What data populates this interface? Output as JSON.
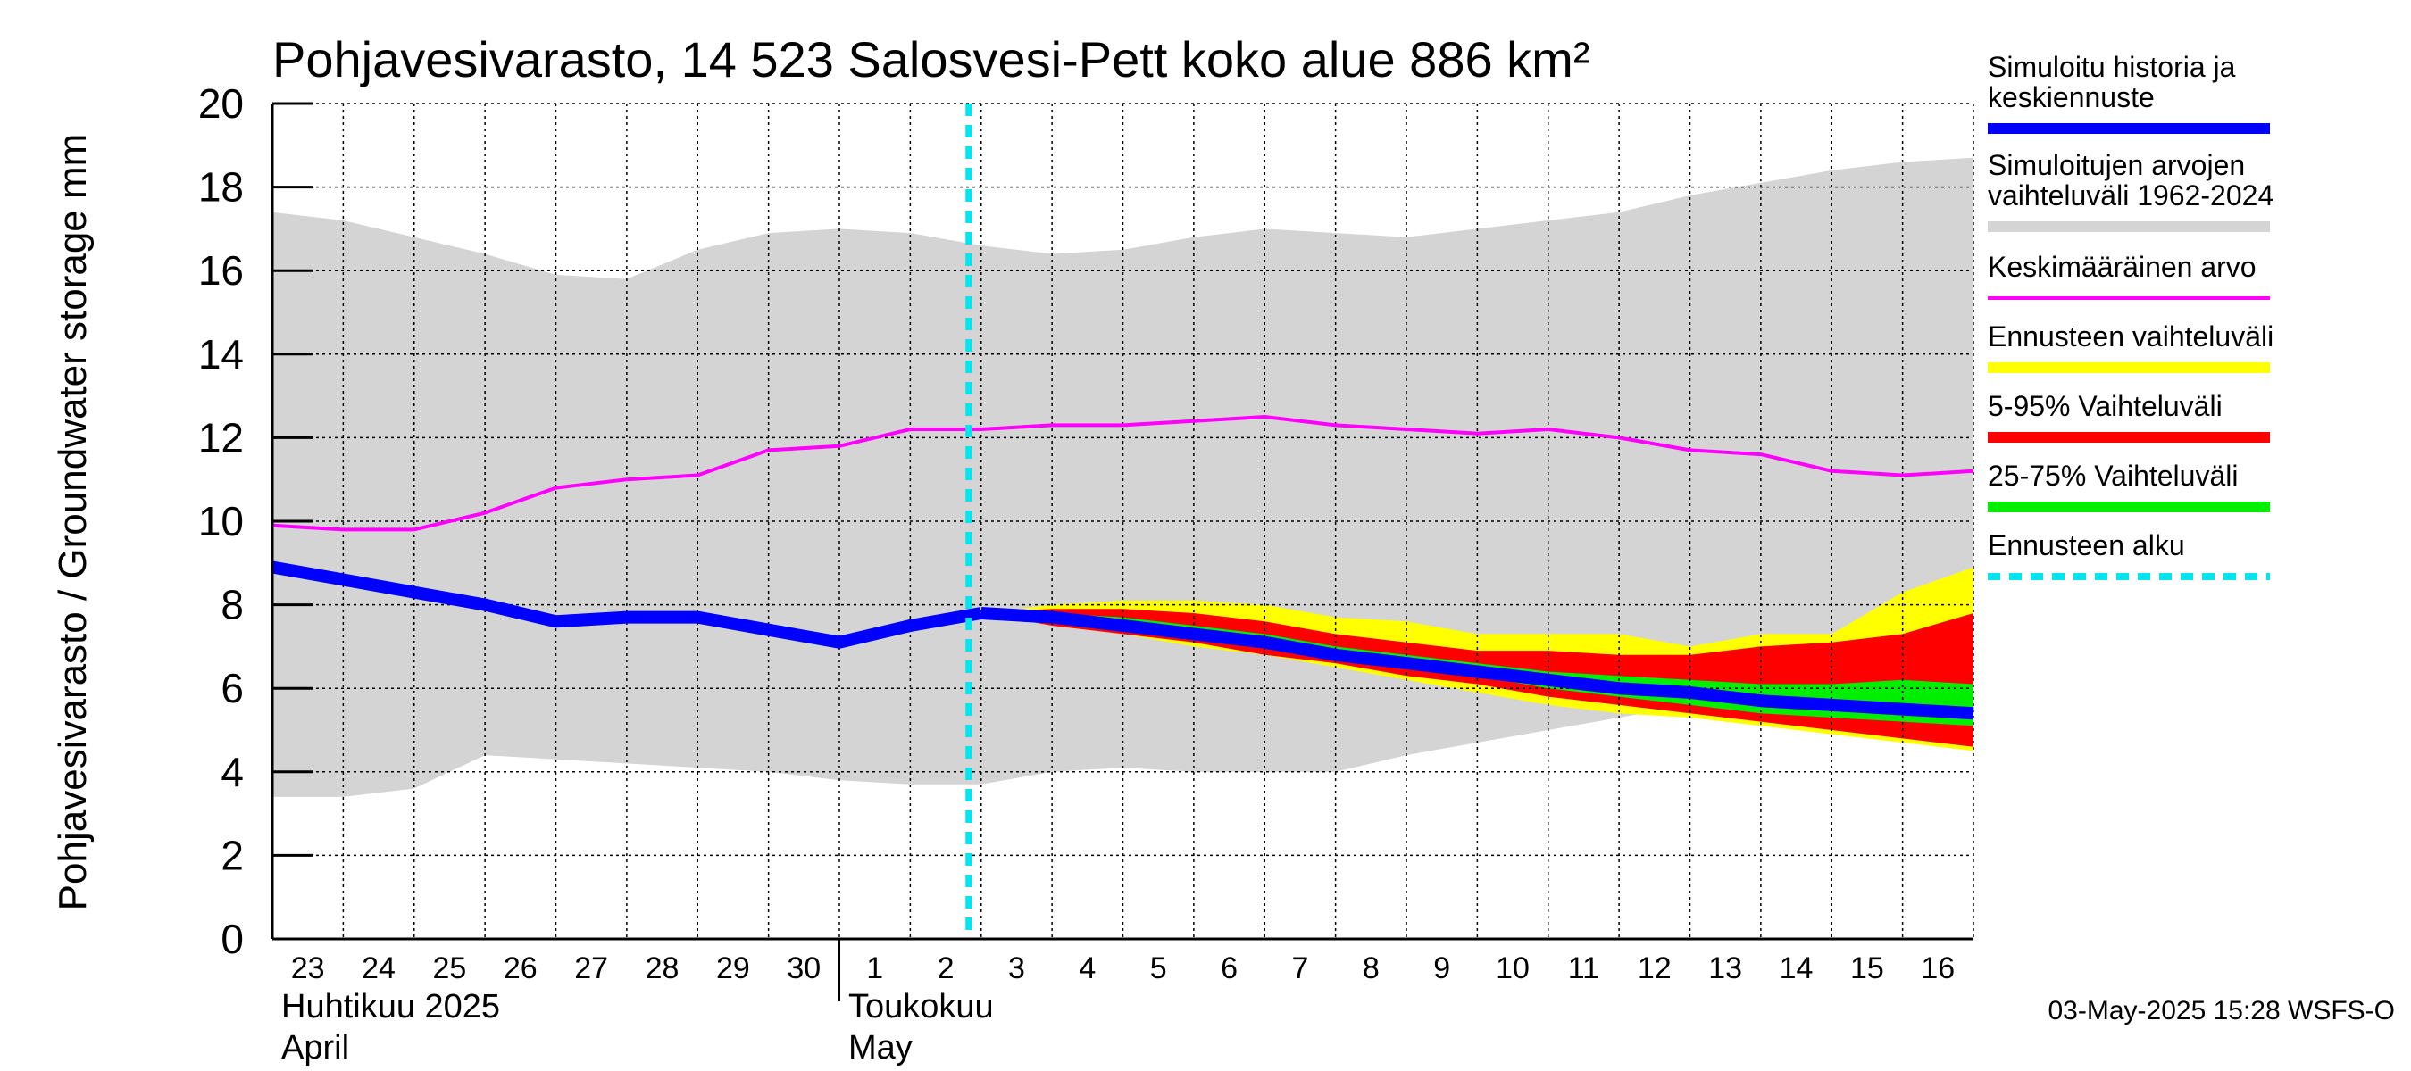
{
  "chart_data": {
    "type": "area",
    "title": "Pohjavesivarasto, 14 523 Salosvesi-Pett koko alue 886 km²",
    "ylabel": "Pohjavesivarasto / Groundwater storage   mm",
    "ylim": [
      0,
      20
    ],
    "yticks": [
      "0",
      "2",
      "4",
      "6",
      "8",
      "10",
      "12",
      "14",
      "16",
      "18",
      "20"
    ],
    "x_tick_labels": [
      "23",
      "24",
      "25",
      "26",
      "27",
      "28",
      "29",
      "30",
      "1",
      "2",
      "3",
      "4",
      "5",
      "6",
      "7",
      "8",
      "9",
      "10",
      "11",
      "12",
      "13",
      "14",
      "15",
      "16"
    ],
    "x_dates": [
      "2025-04-23",
      "2025-04-24",
      "2025-04-25",
      "2025-04-26",
      "2025-04-27",
      "2025-04-28",
      "2025-04-29",
      "2025-04-30",
      "2025-05-01",
      "2025-05-02",
      "2025-05-03",
      "2025-05-04",
      "2025-05-05",
      "2025-05-06",
      "2025-05-07",
      "2025-05-08",
      "2025-05-09",
      "2025-05-10",
      "2025-05-11",
      "2025-05-12",
      "2025-05-13",
      "2025-05-14",
      "2025-05-15",
      "2025-05-16",
      "2025-05-17"
    ],
    "month_labels": [
      {
        "line1": "Huhtikuu  2025",
        "line2": "April"
      },
      {
        "line1": "Toukokuu",
        "line2": "May"
      }
    ],
    "forecast_start": "2025-05-03",
    "sim_range_upper": [
      17.4,
      17.2,
      16.8,
      16.4,
      15.9,
      15.8,
      16.5,
      16.9,
      17.0,
      16.9,
      16.6,
      16.4,
      16.5,
      16.8,
      17.0,
      16.9,
      16.8,
      17.0,
      17.2,
      17.4,
      17.8,
      18.1,
      18.4,
      18.6,
      18.7
    ],
    "sim_range_lower": [
      3.4,
      3.4,
      3.6,
      4.4,
      4.3,
      4.2,
      4.1,
      4.0,
      3.8,
      3.7,
      3.7,
      4.0,
      4.1,
      4.0,
      4.0,
      4.0,
      4.4,
      4.7,
      5.0,
      5.3,
      5.6,
      5.8,
      5.8,
      5.9,
      5.9
    ],
    "mean_values": [
      9.9,
      9.8,
      9.8,
      10.2,
      10.8,
      11.0,
      11.1,
      11.7,
      11.8,
      12.2,
      12.2,
      12.3,
      12.3,
      12.4,
      12.5,
      12.3,
      12.2,
      12.1,
      12.2,
      12.0,
      11.7,
      11.6,
      11.2,
      11.1,
      11.2
    ],
    "history_values": [
      8.9,
      8.6,
      8.3,
      8.0,
      7.6,
      7.7,
      7.7,
      7.4,
      7.1,
      7.5,
      7.8
    ],
    "median_forecast": [
      7.8,
      7.7,
      7.5,
      7.3,
      7.1,
      6.8,
      6.6,
      6.4,
      6.2,
      6.0,
      5.9,
      5.7,
      5.6,
      5.5,
      5.4
    ],
    "forecast_range_upper": [
      7.8,
      8.0,
      8.1,
      8.1,
      8.0,
      7.7,
      7.6,
      7.3,
      7.3,
      7.3,
      7.0,
      7.3,
      7.3,
      8.3,
      8.9
    ],
    "forecast_range_lower": [
      7.8,
      7.5,
      7.3,
      7.0,
      6.8,
      6.5,
      6.2,
      5.9,
      5.6,
      5.4,
      5.3,
      5.1,
      4.9,
      4.7,
      4.5
    ],
    "p5_95_upper": [
      7.8,
      7.9,
      7.9,
      7.8,
      7.6,
      7.3,
      7.1,
      6.9,
      6.9,
      6.8,
      6.8,
      7.0,
      7.1,
      7.3,
      7.8
    ],
    "p5_95_lower": [
      7.8,
      7.5,
      7.3,
      7.1,
      6.8,
      6.6,
      6.3,
      6.1,
      5.8,
      5.6,
      5.4,
      5.2,
      5.0,
      4.8,
      4.6
    ],
    "p25_75_upper": [
      7.8,
      7.8,
      7.7,
      7.5,
      7.3,
      7.0,
      6.8,
      6.6,
      6.4,
      6.3,
      6.2,
      6.1,
      6.1,
      6.2,
      6.1
    ],
    "p25_75_lower": [
      7.8,
      7.6,
      7.4,
      7.2,
      7.0,
      6.7,
      6.5,
      6.3,
      6.0,
      5.8,
      5.6,
      5.4,
      5.3,
      5.2,
      5.1
    ],
    "series": [
      {
        "name": "Simuloitu historia ja keskiennuste",
        "color": "#0000ff"
      },
      {
        "name": "Simuloitujen arvojen vaihteluväli 1962-2024",
        "color": "#d4d4d4"
      },
      {
        "name": "Keskimääräinen arvo",
        "color": "#ff00ff"
      },
      {
        "name": "Ennusteen vaihteluväli",
        "color": "#ffff00"
      },
      {
        "name": "5-95% Vaihteluväli",
        "color": "#ff0000"
      },
      {
        "name": "25-75% Vaihteluväli",
        "color": "#00ee00"
      },
      {
        "name": "Ennusteen alku",
        "color": "#00e5ee"
      }
    ]
  },
  "legend": [
    {
      "line1": "Simuloitu historia ja",
      "line2": "keskiennuste",
      "color": "#0000ff",
      "style": "thick"
    },
    {
      "line1": "Simuloitujen arvojen",
      "line2": "vaihteluväli 1962-2024",
      "color": "#d4d4d4",
      "style": "thick"
    },
    {
      "line1": "Keskimääräinen arvo",
      "line2": "",
      "color": "#ff00ff",
      "style": "thin"
    },
    {
      "line1": "Ennusteen vaihteluväli",
      "line2": "",
      "color": "#ffff00",
      "style": "thick"
    },
    {
      "line1": "5-95% Vaihteluväli",
      "line2": "",
      "color": "#ff0000",
      "style": "thick"
    },
    {
      "line1": "25-75% Vaihteluväli",
      "line2": "",
      "color": "#00ee00",
      "style": "thick"
    },
    {
      "line1": "Ennusteen alku",
      "line2": "",
      "color": "#00e5ee",
      "style": "dashed"
    }
  ],
  "footer": "03-May-2025 15:28 WSFS-O"
}
